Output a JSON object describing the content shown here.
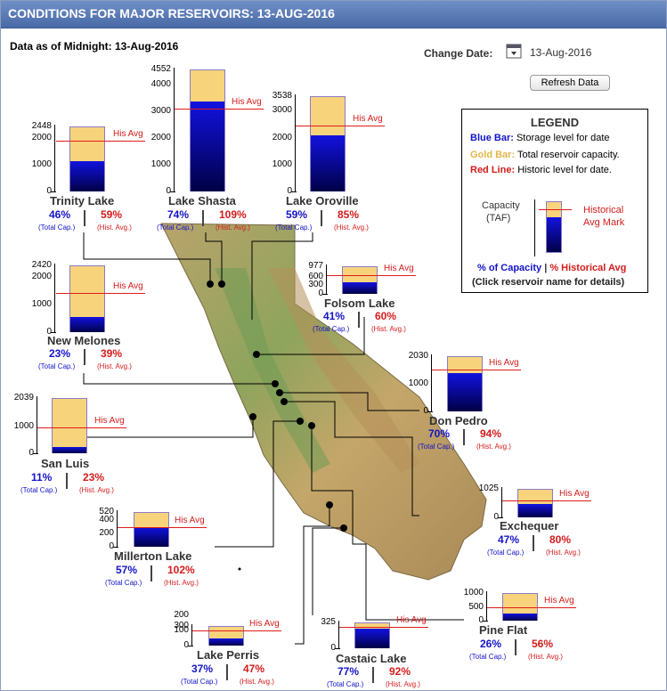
{
  "header": {
    "title": "CONDITIONS FOR MAJOR RESERVOIRS: 13-AUG-2016"
  },
  "subheader": {
    "data_as_of": "Data as of Midnight: 13-Aug-2016",
    "change_date_label": "Change Date:",
    "date_value": "13-Aug-2016",
    "refresh_label": "Refresh Data"
  },
  "legend": {
    "title": "LEGEND",
    "blue_term": "Blue Bar:",
    "blue_desc": "Storage level for date",
    "gold_term": "Gold Bar:",
    "gold_desc": "Total reservoir capacity.",
    "red_term": "Red Line:",
    "red_desc": "Historic level for date.",
    "capacity_label_1": "Capacity",
    "capacity_label_2": "(TAF)",
    "hist_mark_1": "Historical",
    "hist_mark_2": "Avg Mark",
    "pct_capacity": "% of Capacity",
    "pipe": "|",
    "pct_hist": "% Historical Avg",
    "click_note": "(Click reservoir name for details)"
  },
  "labels": {
    "his_avg": "His Avg",
    "total_cap": "(Total Cap.)",
    "hist_avg": "(Hist. Avg.)"
  },
  "colors": {
    "blue": "#1414c8",
    "gold": "#f7d37c",
    "red": "#e01c1c",
    "title_bar": "#5b7bb8"
  },
  "reservoirs": [
    {
      "name": "Trinity Lake",
      "capacity": 2448,
      "ticks": [
        "2448",
        "2000",
        "1000",
        "0"
      ],
      "pct_capacity": "46%",
      "pct_hist_avg": "59%",
      "storage_fraction": 0.46,
      "hist_avg_fraction": 0.78
    },
    {
      "name": "Lake Shasta",
      "capacity": 4552,
      "ticks": [
        "4552",
        "4000",
        "3000",
        "2000",
        "1000",
        "0"
      ],
      "pct_capacity": "74%",
      "pct_hist_avg": "109%",
      "storage_fraction": 0.74,
      "hist_avg_fraction": 0.68
    },
    {
      "name": "Lake Oroville",
      "capacity": 3538,
      "ticks": [
        "3538",
        "3000",
        "2000",
        "1000",
        "0"
      ],
      "pct_capacity": "59%",
      "pct_hist_avg": "85%",
      "storage_fraction": 0.59,
      "hist_avg_fraction": 0.69
    },
    {
      "name": "Folsom Lake",
      "capacity": 977,
      "ticks": [
        "977",
        "600",
        "300",
        "0"
      ],
      "pct_capacity": "41%",
      "pct_hist_avg": "60%",
      "storage_fraction": 0.41,
      "hist_avg_fraction": 0.68
    },
    {
      "name": "New Melones",
      "capacity": 2420,
      "ticks": [
        "2420",
        "2000",
        "1000",
        "0"
      ],
      "pct_capacity": "23%",
      "pct_hist_avg": "39%",
      "storage_fraction": 0.23,
      "hist_avg_fraction": 0.59
    },
    {
      "name": "Don Pedro",
      "capacity": 2030,
      "ticks": [
        "2030",
        "1000",
        "0"
      ],
      "pct_capacity": "70%",
      "pct_hist_avg": "94%",
      "storage_fraction": 0.7,
      "hist_avg_fraction": 0.75
    },
    {
      "name": "San Luis",
      "capacity": 2039,
      "ticks": [
        "2039",
        "1000",
        "0"
      ],
      "pct_capacity": "11%",
      "pct_hist_avg": "23%",
      "storage_fraction": 0.11,
      "hist_avg_fraction": 0.47
    },
    {
      "name": "Exchequer",
      "capacity": 1025,
      "ticks": [
        "1025",
        "0"
      ],
      "pct_capacity": "47%",
      "pct_hist_avg": "80%",
      "storage_fraction": 0.47,
      "hist_avg_fraction": 0.59
    },
    {
      "name": "Millerton Lake",
      "capacity": 520,
      "ticks": [
        "520",
        "400",
        "200",
        "0"
      ],
      "pct_capacity": "57%",
      "pct_hist_avg": "102%",
      "storage_fraction": 0.57,
      "hist_avg_fraction": 0.56
    },
    {
      "name": "Pine Flat",
      "capacity": 1000,
      "ticks": [
        "1000",
        "500",
        "0"
      ],
      "pct_capacity": "26%",
      "pct_hist_avg": "56%",
      "storage_fraction": 0.26,
      "hist_avg_fraction": 0.47
    },
    {
      "name": "Lake Perris",
      "capacity": 131,
      "ticks": [
        "300",
        "200",
        "100",
        "0"
      ],
      "pct_capacity": "37%",
      "pct_hist_avg": "47%",
      "storage_fraction": 0.37,
      "hist_avg_fraction": 0.79
    },
    {
      "name": "Castaic Lake",
      "capacity": 325,
      "ticks": [
        "325",
        "0"
      ],
      "pct_capacity": "77%",
      "pct_hist_avg": "92%",
      "storage_fraction": 0.77,
      "hist_avg_fraction": 0.84
    }
  ]
}
